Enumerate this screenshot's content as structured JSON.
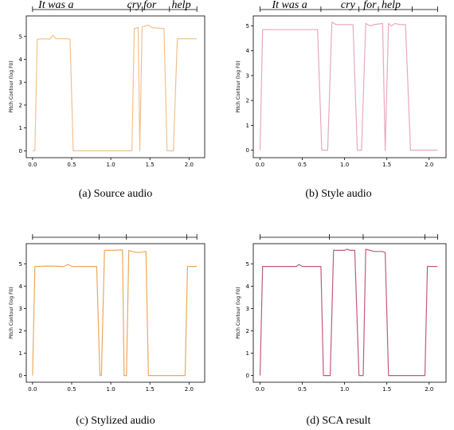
{
  "figure": {
    "panels": [
      {
        "caption": "(a) Source audio"
      },
      {
        "caption": "(b) Style audio"
      },
      {
        "caption": "(c) Stylized audio"
      },
      {
        "caption": "(d) SCA result"
      }
    ]
  },
  "chart_data": [
    {
      "type": "line",
      "ylabel": "Pitch Contour (log F0)",
      "xlabel": "",
      "xlim": [
        -0.08,
        2.2
      ],
      "ylim": [
        -0.3,
        5.9
      ],
      "xticks": [
        "0.0",
        "0.5",
        "1.0",
        "1.5",
        "2.0"
      ],
      "yticks": [
        "0",
        "1",
        "2",
        "3",
        "4",
        "5"
      ],
      "line_color": "#f4c08e",
      "words": [
        {
          "text": "It was a",
          "x": 0.3
        },
        {
          "text": "cry",
          "x": 1.3
        },
        {
          "text": "for",
          "x": 1.5
        },
        {
          "text": "help",
          "x": 1.9
        }
      ],
      "boundaries": [
        1.25,
        1.4,
        1.75
      ],
      "series": [
        {
          "x": [
            0.0,
            0.03,
            0.06,
            0.15,
            0.22,
            0.26,
            0.3,
            0.35,
            0.45,
            0.48,
            0.52,
            1.27,
            1.3,
            1.35,
            1.37,
            1.4,
            1.43,
            1.48,
            1.52,
            1.55,
            1.68,
            1.72,
            1.8,
            1.85,
            2.1
          ],
          "y": [
            0.0,
            0.0,
            4.88,
            4.9,
            4.88,
            5.05,
            4.9,
            4.9,
            4.9,
            4.88,
            0.0,
            0.0,
            5.35,
            5.4,
            0.0,
            5.42,
            5.45,
            5.5,
            5.4,
            5.38,
            5.35,
            0.0,
            0.0,
            4.9,
            4.9
          ]
        }
      ]
    },
    {
      "type": "line",
      "ylabel": "Pitch Contour (log F0)",
      "xlabel": "",
      "xlim": [
        -0.08,
        2.2
      ],
      "ylim": [
        -0.3,
        5.4
      ],
      "xticks": [
        "0.0",
        "0.5",
        "1.0",
        "1.5",
        "2.0"
      ],
      "yticks": [
        "0",
        "1",
        "2",
        "3",
        "4",
        "5"
      ],
      "line_color": "#e8a8c0",
      "words": [
        {
          "text": "It was a",
          "x": 0.35
        },
        {
          "text": "cry",
          "x": 1.04
        },
        {
          "text": "for",
          "x": 1.3
        },
        {
          "text": "help",
          "x": 1.55
        }
      ],
      "boundaries": [
        0.72,
        1.17,
        1.4,
        1.8
      ],
      "series": [
        {
          "x": [
            0.0,
            0.03,
            0.68,
            0.73,
            0.8,
            0.85,
            0.9,
            1.05,
            1.1,
            1.15,
            1.2,
            1.25,
            1.3,
            1.35,
            1.45,
            1.48,
            1.52,
            1.55,
            1.6,
            1.65,
            1.72,
            1.78,
            2.1
          ],
          "y": [
            0.0,
            4.85,
            4.85,
            0.0,
            0.0,
            5.15,
            5.05,
            5.05,
            5.05,
            0.0,
            0.0,
            5.1,
            5.0,
            5.05,
            5.1,
            0.0,
            5.1,
            5.0,
            5.1,
            5.05,
            5.05,
            0.0,
            0.0
          ]
        }
      ]
    },
    {
      "type": "line",
      "ylabel": "Pitch Contour (log F0)",
      "xlabel": "",
      "xlim": [
        -0.08,
        2.2
      ],
      "ylim": [
        -0.3,
        5.9
      ],
      "xticks": [
        "0.0",
        "0.5",
        "1.0",
        "1.5",
        "2.0"
      ],
      "yticks": [
        "0",
        "1",
        "2",
        "3",
        "4",
        "5"
      ],
      "line_color": "#eda85c",
      "words": [],
      "boundaries": [
        0.85,
        1.2,
        1.97
      ],
      "series": [
        {
          "x": [
            0.0,
            0.03,
            0.2,
            0.4,
            0.45,
            0.5,
            0.82,
            0.86,
            0.88,
            0.92,
            1.0,
            1.15,
            1.17,
            1.2,
            1.23,
            1.27,
            1.35,
            1.45,
            1.48,
            1.52,
            1.95,
            1.98,
            2.1
          ],
          "y": [
            0.0,
            4.88,
            4.9,
            4.88,
            4.97,
            4.88,
            4.88,
            0.0,
            0.0,
            5.6,
            5.6,
            5.62,
            0.0,
            0.0,
            5.6,
            5.55,
            5.5,
            5.55,
            0.0,
            0.0,
            0.0,
            4.88,
            4.88
          ]
        }
      ]
    },
    {
      "type": "line",
      "ylabel": "Pitch Contour (log F0)",
      "xlabel": "",
      "xlim": [
        -0.08,
        2.2
      ],
      "ylim": [
        -0.3,
        5.9
      ],
      "xticks": [
        "0.0",
        "0.5",
        "1.0",
        "1.5",
        "2.0"
      ],
      "yticks": [
        "0",
        "1",
        "2",
        "3",
        "4",
        "5"
      ],
      "line_color": "#c25a78",
      "words": [],
      "boundaries": [
        0.82,
        1.22,
        1.95
      ],
      "series": [
        {
          "x": [
            0.0,
            0.03,
            0.3,
            0.43,
            0.46,
            0.5,
            0.72,
            0.75,
            0.83,
            0.87,
            1.0,
            1.03,
            1.07,
            1.12,
            1.17,
            1.22,
            1.25,
            1.35,
            1.45,
            1.48,
            1.52,
            1.95,
            1.98,
            2.1
          ],
          "y": [
            0.0,
            4.88,
            4.88,
            4.88,
            4.97,
            4.88,
            4.88,
            0.0,
            0.0,
            5.6,
            5.6,
            5.65,
            5.6,
            5.6,
            0.0,
            0.0,
            5.65,
            5.55,
            5.55,
            5.5,
            0.0,
            0.0,
            4.88,
            4.88
          ]
        }
      ]
    }
  ]
}
